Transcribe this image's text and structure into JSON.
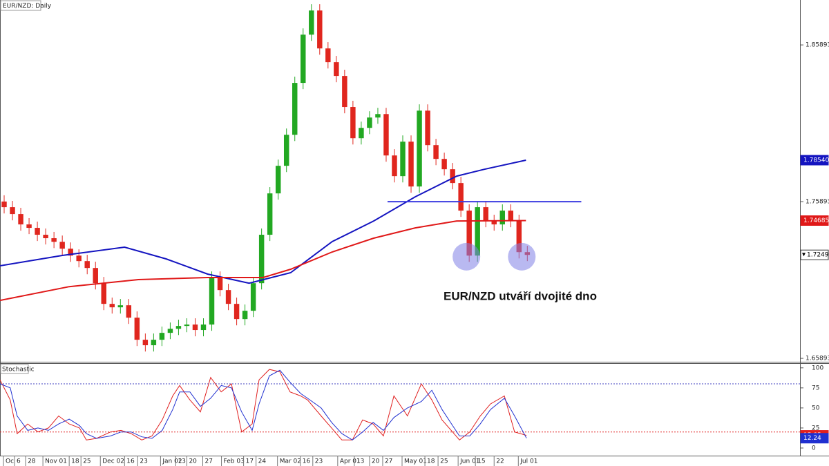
{
  "chart_data": [
    {
      "type": "candlestick",
      "title": "EUR/NZD: Daily",
      "x": [
        1.5,
        4.5,
        7.5,
        10.5,
        13.5,
        16.5,
        19.5,
        22.5,
        25.5,
        28.5,
        31.5,
        34.5,
        37.5,
        40.5,
        43.5,
        46.5,
        49.5,
        52.5,
        55.5,
        58.5,
        61.5,
        64.5,
        67.5,
        70.5,
        73.5,
        76.5,
        79.5,
        82.5,
        85.5,
        88.5,
        91.5,
        94.5,
        97.5,
        100.5,
        103.5,
        106.5,
        109.5,
        112.5,
        115.5,
        118.5,
        121.5,
        124.5,
        127.5,
        130.5,
        133.5,
        136.5,
        139.5,
        142.5,
        145.5,
        148.5,
        151.5,
        154.5,
        157.5,
        160.5,
        163.5,
        166.5,
        169.5,
        172.5,
        175.5,
        178.5,
        181.5,
        184.5,
        187.5,
        190.5
      ],
      "open": [
        1.759,
        1.7554,
        1.751,
        1.7444,
        1.7422,
        1.7378,
        1.7356,
        1.7333,
        1.7289,
        1.7245,
        1.721,
        1.7166,
        1.7069,
        1.6937,
        1.6915,
        1.6928,
        1.6849,
        1.6708,
        1.6673,
        1.6708,
        1.6752,
        1.6778,
        1.6796,
        1.6805,
        1.677,
        1.6805,
        1.7104,
        1.7025,
        1.6937,
        1.684,
        1.6893,
        1.7069,
        1.7378,
        1.7642,
        1.7818,
        1.8016,
        1.8347,
        1.8655,
        1.8809,
        1.8567,
        1.8479,
        1.8391,
        1.8193,
        1.7994,
        1.806,
        1.8126,
        1.8148,
        1.7884,
        1.7752,
        1.7972,
        1.7686,
        1.817,
        1.795,
        1.7862,
        1.7796,
        1.7708,
        1.7532,
        1.7245,
        1.7554,
        1.7466,
        1.7444,
        1.7532,
        1.7466,
        1.7267
      ],
      "high": [
        1.763,
        1.7594,
        1.755,
        1.7484,
        1.7462,
        1.7418,
        1.7396,
        1.7373,
        1.7329,
        1.7285,
        1.725,
        1.7206,
        1.7109,
        1.6977,
        1.6968,
        1.6968,
        1.6889,
        1.6748,
        1.6748,
        1.6792,
        1.6818,
        1.6836,
        1.6845,
        1.6845,
        1.6845,
        1.7144,
        1.7144,
        1.7065,
        1.6977,
        1.6933,
        1.7109,
        1.7418,
        1.7682,
        1.7858,
        1.8056,
        1.8387,
        1.8695,
        1.8849,
        1.8849,
        1.8607,
        1.8519,
        1.8431,
        1.8233,
        1.81,
        1.8166,
        1.8188,
        1.8188,
        1.7924,
        1.8012,
        1.8012,
        1.821,
        1.821,
        1.799,
        1.7902,
        1.7836,
        1.7748,
        1.7572,
        1.7594,
        1.7594,
        1.7506,
        1.7572,
        1.7572,
        1.7506,
        1.7307
      ],
      "low": [
        1.7514,
        1.747,
        1.7404,
        1.7382,
        1.7338,
        1.7316,
        1.7293,
        1.7249,
        1.7205,
        1.717,
        1.7126,
        1.7029,
        1.6897,
        1.6875,
        1.6875,
        1.6809,
        1.6668,
        1.6633,
        1.6633,
        1.6668,
        1.6712,
        1.6738,
        1.6756,
        1.673,
        1.673,
        1.6765,
        1.6985,
        1.6897,
        1.68,
        1.68,
        1.6853,
        1.7029,
        1.7338,
        1.7602,
        1.7778,
        1.7976,
        1.8307,
        1.8615,
        1.8527,
        1.8439,
        1.8351,
        1.8153,
        1.7954,
        1.7954,
        1.802,
        1.8086,
        1.7844,
        1.7712,
        1.7712,
        1.7646,
        1.7646,
        1.791,
        1.7822,
        1.7756,
        1.7668,
        1.7492,
        1.7205,
        1.7205,
        1.7426,
        1.7404,
        1.7404,
        1.7426,
        1.7227,
        1.721
      ],
      "close": [
        1.7554,
        1.751,
        1.7444,
        1.7422,
        1.7378,
        1.7356,
        1.7333,
        1.7289,
        1.7245,
        1.721,
        1.7166,
        1.7069,
        1.6937,
        1.6915,
        1.6928,
        1.6849,
        1.6708,
        1.6673,
        1.6708,
        1.6752,
        1.6778,
        1.6796,
        1.6805,
        1.677,
        1.6805,
        1.7104,
        1.7025,
        1.6937,
        1.684,
        1.6893,
        1.7069,
        1.7378,
        1.7642,
        1.7818,
        1.8016,
        1.8347,
        1.8655,
        1.8809,
        1.8567,
        1.8479,
        1.8391,
        1.8193,
        1.7994,
        1.806,
        1.8126,
        1.8148,
        1.7884,
        1.7752,
        1.7972,
        1.7686,
        1.817,
        1.795,
        1.7862,
        1.7796,
        1.7708,
        1.7532,
        1.7245,
        1.7554,
        1.7466,
        1.7444,
        1.7532,
        1.7466,
        1.7267,
        1.72495
      ],
      "up_color": "#22a822",
      "down_color": "#e0261e",
      "xlim": [
        0,
        289
      ],
      "ylim": [
        1.6572,
        1.8876
      ],
      "yticks": [
        1.65893,
        1.75893,
        1.85893
      ],
      "lines": [
        {
          "color": "#1414c0",
          "x": [
            0,
            22.5,
            45,
            60,
            75,
            90,
            105,
            120,
            135,
            150,
            165,
            175,
            190
          ],
          "values": [
            1.718,
            1.7246,
            1.7299,
            1.7224,
            1.7127,
            1.7069,
            1.7136,
            1.7334,
            1.7466,
            1.762,
            1.7752,
            1.7796,
            1.7854
          ],
          "value_labels": [
            null,
            null,
            null,
            null,
            null,
            null,
            null,
            null,
            null,
            null,
            null,
            null,
            "1.78540"
          ]
        },
        {
          "color": "#e01818",
          "x": [
            0,
            25,
            50,
            75,
            95,
            105,
            120,
            135,
            150,
            165,
            190
          ],
          "values": [
            1.6959,
            1.7047,
            1.7092,
            1.7105,
            1.7105,
            1.7158,
            1.7268,
            1.7356,
            1.7422,
            1.7466,
            1.74685
          ]
        }
      ],
      "hline": {
        "value": 1.7589,
        "x": [
          140,
          210
        ],
        "color": "#3b3be0"
      },
      "markers": {
        "x": [
          168.5,
          188.5
        ],
        "values": [
          1.7238,
          1.7238
        ],
        "color": "#7f7fe6"
      },
      "annotation": "EUR/NZD utváří dvojité dno"
    },
    {
      "type": "line",
      "title": "Stochastic",
      "xlim": [
        0,
        289
      ],
      "ylim": [
        -9.5,
        105
      ],
      "yticks": [
        0,
        25,
        50,
        75,
        100
      ],
      "levels": [
        {
          "value": 80,
          "color": "#4040c0"
        },
        {
          "value": 20,
          "color": "#e02020"
        }
      ],
      "series": [
        {
          "color": "#e02020",
          "x": [
            0,
            3.7,
            6.2,
            10,
            13.7,
            17.5,
            21.2,
            25,
            28.7,
            31.2,
            34.9,
            39.9,
            43.7,
            47.4,
            51.2,
            54.9,
            58.6,
            62.4,
            64.9,
            68.6,
            72.4,
            76.1,
            79.9,
            83.6,
            87.3,
            91.1,
            93.6,
            97.3,
            101.1,
            104.8,
            108.6,
            111.1,
            116,
            119.8,
            123.5,
            127.3,
            131,
            134.8,
            138.5,
            142.3,
            147.2,
            152.2,
            156,
            159.7,
            163.5,
            166,
            169.7,
            173.5,
            177.2,
            182.2,
            185.9,
            190.2
          ],
          "values": [
            85,
            60,
            18,
            30,
            20,
            25,
            40,
            30,
            25,
            10,
            12,
            20,
            22,
            18,
            10,
            15,
            35,
            65,
            78,
            60,
            45,
            88,
            70,
            80,
            20,
            30,
            85,
            98,
            95,
            70,
            65,
            60,
            40,
            25,
            10,
            10,
            35,
            30,
            15,
            65,
            40,
            80,
            60,
            35,
            20,
            10,
            20,
            40,
            55,
            65,
            20,
            15.85
          ]
        },
        {
          "color": "#2030d0",
          "x": [
            0,
            3.7,
            6.2,
            10,
            13.7,
            17.5,
            21.2,
            25,
            28.7,
            31.2,
            34.9,
            39.9,
            43.7,
            47.4,
            51.2,
            54.9,
            58.6,
            62.4,
            64.9,
            68.6,
            72.4,
            76.1,
            79.9,
            83.6,
            87.3,
            91.1,
            93.6,
            97.3,
            101.1,
            104.8,
            108.6,
            111.1,
            116,
            119.8,
            123.5,
            127.3,
            131,
            134.8,
            138.5,
            142.3,
            147.2,
            152.2,
            156,
            159.7,
            163.5,
            166,
            169.7,
            173.5,
            177.2,
            182.2,
            185.9,
            190.2
          ],
          "values": [
            80,
            75,
            40,
            22,
            25,
            22,
            30,
            36,
            28,
            18,
            12,
            15,
            20,
            20,
            14,
            12,
            22,
            48,
            70,
            70,
            52,
            62,
            78,
            75,
            45,
            22,
            55,
            90,
            97,
            82,
            68,
            62,
            50,
            32,
            18,
            10,
            20,
            32,
            22,
            38,
            50,
            58,
            72,
            48,
            28,
            15,
            15,
            30,
            48,
            62,
            40,
            12.24
          ]
        }
      ],
      "xticks": [
        {
          "value": 1.25,
          "label": "Oc"
        },
        {
          "value": 5.25,
          "label": "6"
        },
        {
          "value": 9.25,
          "label": "28"
        },
        {
          "value": 15.5,
          "label": "Nov 01"
        },
        {
          "value": 25,
          "label": "18"
        },
        {
          "value": 29.25,
          "label": "25"
        },
        {
          "value": 36.25,
          "label": "Dec 02"
        },
        {
          "value": 45,
          "label": "16"
        },
        {
          "value": 49.75,
          "label": "23"
        },
        {
          "value": 58,
          "label": "Jan 02"
        },
        {
          "value": 63.5,
          "label": "13"
        },
        {
          "value": 67.5,
          "label": "20"
        },
        {
          "value": 73.25,
          "label": "27"
        },
        {
          "value": 80,
          "label": "Feb 03"
        },
        {
          "value": 88,
          "label": "17"
        },
        {
          "value": 92.5,
          "label": "24"
        },
        {
          "value": 100.25,
          "label": "Mar 02"
        },
        {
          "value": 108.5,
          "label": "16"
        },
        {
          "value": 113,
          "label": "23"
        },
        {
          "value": 122,
          "label": "Apr 01"
        },
        {
          "value": 128,
          "label": "13"
        },
        {
          "value": 133.5,
          "label": "20"
        },
        {
          "value": 138.25,
          "label": "27"
        },
        {
          "value": 145.25,
          "label": "May 01"
        },
        {
          "value": 153.5,
          "label": "18"
        },
        {
          "value": 158.25,
          "label": "25"
        },
        {
          "value": 165.5,
          "label": "Jun 01"
        },
        {
          "value": 171.75,
          "label": "15"
        },
        {
          "value": 178.5,
          "label": "22"
        },
        {
          "value": 187.25,
          "label": "Jul 01"
        }
      ]
    }
  ]
}
